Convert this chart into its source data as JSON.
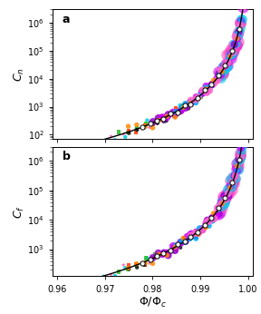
{
  "title_a": "a",
  "title_b": "b",
  "ylabel_a": "$C_n$",
  "ylabel_b": "$C_f$",
  "xlabel": "$\\Phi/\\Phi_c$",
  "xlim": [
    0.959,
    1.001
  ],
  "ylim_a": [
    70,
    3000000
  ],
  "ylim_b": [
    120,
    3000000
  ],
  "xticks": [
    0.96,
    0.97,
    0.98,
    0.99,
    1.0
  ],
  "xtick_labels": [
    "0.96",
    "0.97",
    "0.98",
    "0.99",
    "1.00"
  ],
  "fit_color": "black",
  "fit_lw": 1.0,
  "alpha_exp": 3.3,
  "cn_scale": 0.00065,
  "cf_scale": 0.0012,
  "colors": [
    "#ff44aa",
    "#00ccdd",
    "#22bb22",
    "#ff3300",
    "#111111",
    "#9900cc",
    "#cc00ff",
    "#00aaff",
    "#ff66cc",
    "#ff8800"
  ],
  "markers": [
    "*",
    "o",
    "s",
    "s",
    "o",
    "o",
    "o",
    "o",
    "o",
    "o"
  ],
  "sizes": [
    12,
    10,
    10,
    10,
    10,
    35,
    35,
    20,
    35,
    15
  ],
  "x_starts": [
    0.96,
    0.963,
    0.973,
    0.975,
    0.975,
    0.98,
    0.982,
    0.985,
    0.988,
    0.975
  ],
  "x_ends": [
    0.985,
    0.988,
    0.99,
    0.99,
    0.992,
    0.9993,
    0.9995,
    0.9995,
    0.9997,
    0.9993
  ],
  "n_pts": [
    10,
    12,
    10,
    10,
    12,
    18,
    18,
    16,
    16,
    16
  ]
}
